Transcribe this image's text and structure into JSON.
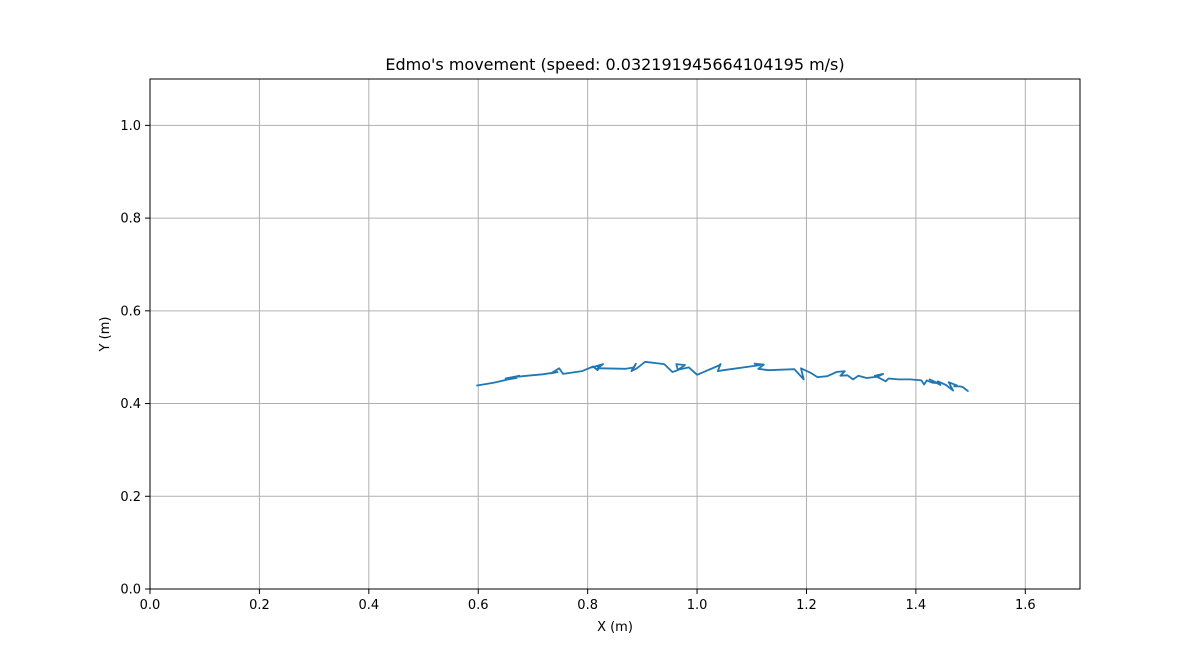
{
  "chart_data": {
    "type": "line",
    "title": "Edmo's movement (speed: 0.032191945664104195 m/s)",
    "xlabel": "X (m)",
    "ylabel": "Y (m)",
    "xlim": [
      0.0,
      1.7
    ],
    "ylim": [
      0.0,
      1.1
    ],
    "xticks": [
      "0.0",
      "0.2",
      "0.4",
      "0.6",
      "0.8",
      "1.0",
      "1.2",
      "1.4",
      "1.6"
    ],
    "yticks": [
      "0.0",
      "0.2",
      "0.4",
      "0.6",
      "0.8",
      "1.0"
    ],
    "grid": true,
    "legend": "none",
    "colors": {
      "series": "#1f77b4",
      "grid": "#b0b0b0",
      "axes": "#000000"
    },
    "series": [
      {
        "x": [
          0.598,
          0.628,
          0.655,
          0.67,
          0.65,
          0.675,
          0.665,
          0.69,
          0.718,
          0.745,
          0.733,
          0.748,
          0.755,
          0.79,
          0.81,
          0.818,
          0.824,
          0.808,
          0.828,
          0.818,
          0.825,
          0.87,
          0.885,
          0.888,
          0.88,
          0.89,
          0.905,
          0.94,
          0.955,
          0.965,
          0.962,
          0.978,
          0.965,
          0.985,
          1.0,
          1.04,
          1.043,
          1.038,
          1.048,
          1.115,
          1.105,
          1.122,
          1.112,
          1.13,
          1.178,
          1.195,
          1.19,
          1.208,
          1.22,
          1.238,
          1.255,
          1.27,
          1.262,
          1.275,
          1.285,
          1.295,
          1.31,
          1.33,
          1.34,
          1.325,
          1.34,
          1.345,
          1.35,
          1.368,
          1.39,
          1.41,
          1.415,
          1.42,
          1.43,
          1.44,
          1.425,
          1.445,
          1.44,
          1.455,
          1.468,
          1.46,
          1.475,
          1.47,
          1.48,
          1.485,
          1.495
        ],
        "y": [
          0.439,
          0.445,
          0.452,
          0.455,
          0.454,
          0.46,
          0.457,
          0.46,
          0.463,
          0.468,
          0.465,
          0.476,
          0.464,
          0.47,
          0.48,
          0.472,
          0.483,
          0.478,
          0.485,
          0.476,
          0.476,
          0.475,
          0.478,
          0.486,
          0.47,
          0.476,
          0.49,
          0.485,
          0.468,
          0.472,
          0.485,
          0.483,
          0.473,
          0.478,
          0.462,
          0.482,
          0.485,
          0.47,
          0.472,
          0.483,
          0.486,
          0.484,
          0.475,
          0.472,
          0.474,
          0.452,
          0.476,
          0.466,
          0.457,
          0.459,
          0.468,
          0.47,
          0.46,
          0.461,
          0.452,
          0.46,
          0.455,
          0.458,
          0.464,
          0.46,
          0.451,
          0.448,
          0.454,
          0.452,
          0.452,
          0.45,
          0.441,
          0.45,
          0.445,
          0.444,
          0.452,
          0.44,
          0.448,
          0.44,
          0.428,
          0.446,
          0.439,
          0.437,
          0.437,
          0.436,
          0.427
        ]
      }
    ]
  }
}
